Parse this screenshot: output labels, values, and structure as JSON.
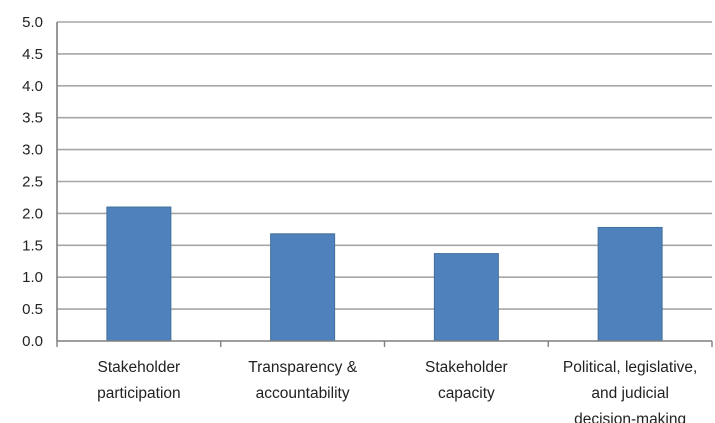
{
  "chart_data": {
    "type": "bar",
    "title": "",
    "xlabel": "",
    "ylabel": "",
    "categories": [
      "Stakeholder participation",
      "Transparency & accountability",
      "Stakeholder capacity",
      "Political, legislative, and judicial decision-making"
    ],
    "category_label_lines": [
      [
        "Stakeholder",
        "participation"
      ],
      [
        "Transparency &",
        "accountability"
      ],
      [
        "Stakeholder",
        "capacity"
      ],
      [
        "Political, legislative,",
        "and judicial",
        "decision-making"
      ]
    ],
    "values": [
      2.1,
      1.68,
      1.37,
      1.78
    ],
    "ylim": [
      0,
      5
    ],
    "yticks": [
      "0.0",
      "0.5",
      "1.0",
      "1.5",
      "2.0",
      "2.5",
      "3.0",
      "3.5",
      "4.0",
      "4.5",
      "5.0"
    ],
    "grid": true,
    "legend": "none",
    "colors": {
      "bar": "#4f81bd",
      "bar_edge": "#41719c",
      "grid": "#a6a6a6",
      "axis": "#7f7f7f",
      "text": "#222222"
    }
  }
}
